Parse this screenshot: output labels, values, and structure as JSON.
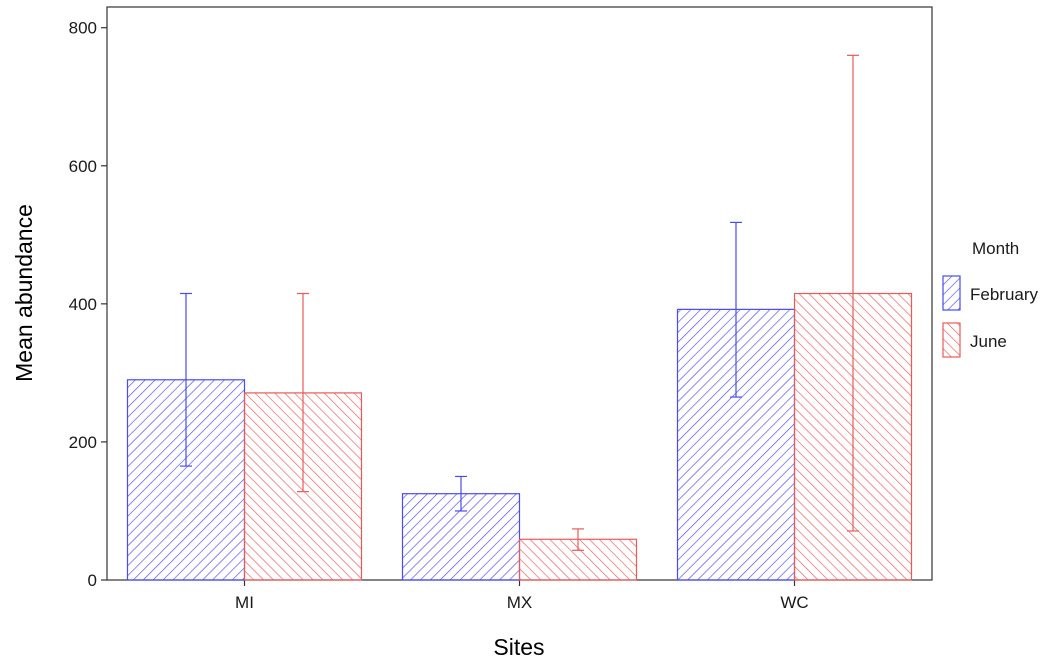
{
  "chart_data": {
    "type": "bar",
    "xlabel": "Sites",
    "ylabel": "Mean abundance",
    "categories": [
      "MI",
      "MX",
      "WC"
    ],
    "ylim": [
      0,
      830
    ],
    "yticks": [
      0,
      200,
      400,
      600,
      800
    ],
    "grid": false,
    "legend": {
      "title": "Month",
      "position": "right"
    },
    "series": [
      {
        "name": "February",
        "color": "#4b4bf0",
        "values": [
          290,
          125,
          392
        ],
        "error_low": [
          165,
          100,
          265
        ],
        "error_high": [
          415,
          150,
          518
        ]
      },
      {
        "name": "June",
        "color": "#e85a5a",
        "values": [
          271,
          59,
          415
        ],
        "error_low": [
          128,
          43,
          71
        ],
        "error_high": [
          415,
          74,
          760
        ]
      }
    ]
  }
}
